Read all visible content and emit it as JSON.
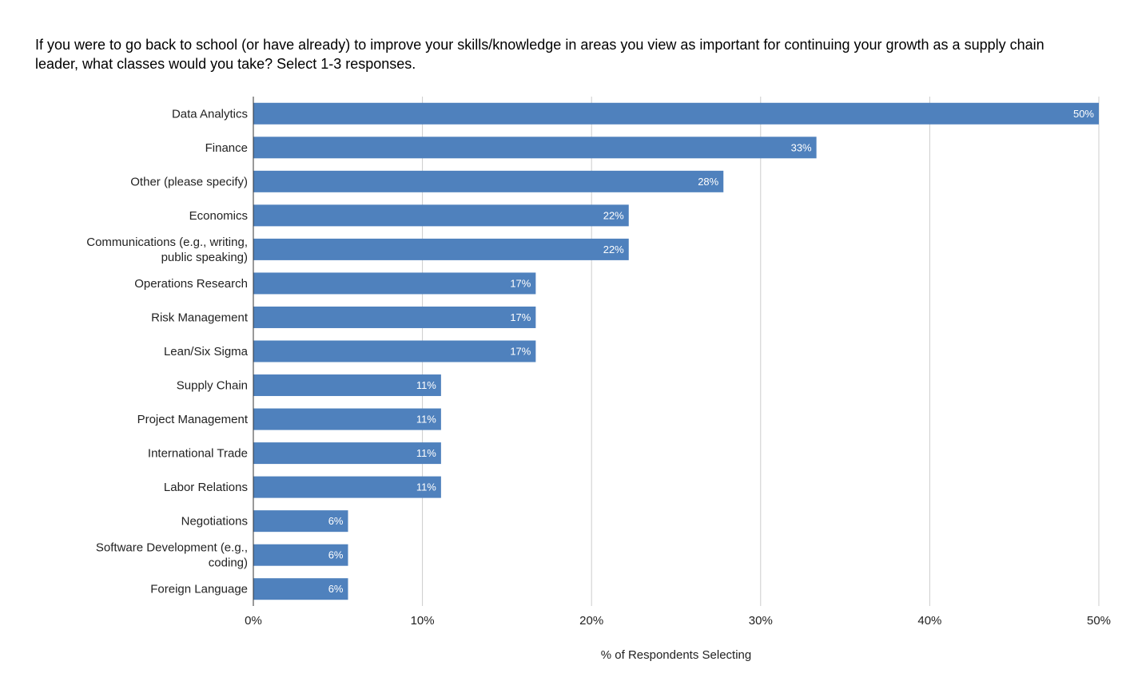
{
  "chart_data": {
    "type": "bar",
    "orientation": "horizontal",
    "title": "If you were to go back to school (or have already) to improve your skills/knowledge in areas you view as important for continuing your growth as a supply chain leader, what classes would you take? Select 1-3 responses.",
    "xlabel": "% of Respondents Selecting",
    "ylabel": "",
    "xlim": [
      0,
      50
    ],
    "x_ticks": [
      0,
      10,
      20,
      30,
      40,
      50
    ],
    "x_tick_labels": [
      "0%",
      "10%",
      "20%",
      "30%",
      "40%",
      "50%"
    ],
    "grid": true,
    "legend": "none",
    "bar_color": "#4f81bd",
    "categories": [
      "Data Analytics",
      "Finance",
      "Other (please specify)",
      "Economics",
      "Communications (e.g., writing, public speaking)",
      "Operations Research",
      "Risk Management",
      "Lean/Six Sigma",
      "Supply Chain",
      "Project Management",
      "International Trade",
      "Labor Relations",
      "Negotiations",
      "Software Development (e.g., coding)",
      "Foreign Language"
    ],
    "values": [
      50,
      33.3,
      27.8,
      22.2,
      22.2,
      16.7,
      16.7,
      16.7,
      11.1,
      11.1,
      11.1,
      11.1,
      5.6,
      5.6,
      5.6
    ],
    "data_labels": [
      "50%",
      "33%",
      "28%",
      "22%",
      "22%",
      "17%",
      "17%",
      "17%",
      "11%",
      "11%",
      "11%",
      "11%",
      "6%",
      "6%",
      "6%"
    ]
  }
}
